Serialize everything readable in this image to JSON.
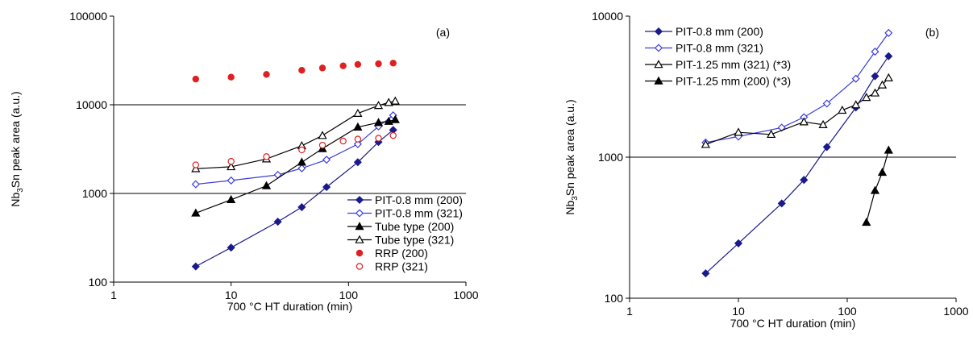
{
  "chart_data": [
    {
      "type": "scatter",
      "panel_label": "(a)",
      "xlabel": "700 °C HT duration (min)",
      "ylabel": "Nb3Sn peak area (a.u.)",
      "ylabel_base": "Nb",
      "ylabel_sub": "3",
      "ylabel_rest": "Sn peak area (a.u.)",
      "x_scale": "log",
      "y_scale": "log",
      "xlim": [
        1,
        1000
      ],
      "ylim": [
        100,
        100000
      ],
      "x_ticks": [
        1,
        10,
        100,
        1000
      ],
      "x_tick_labels": [
        "1",
        "10",
        "100",
        "1000"
      ],
      "y_ticks": [
        100,
        1000,
        10000,
        100000
      ],
      "y_tick_labels": [
        "100",
        "1000",
        "10000",
        "100000"
      ],
      "gridlines_y": [
        1000,
        10000
      ],
      "legend_position": "bottom-right",
      "series": [
        {
          "name": "PIT-0.8 mm (200)",
          "color": "#1a1a8c",
          "marker": "diamond-filled",
          "line": true,
          "x": [
            5,
            10,
            25,
            40,
            65,
            120,
            180,
            240
          ],
          "y": [
            150,
            245,
            480,
            700,
            1180,
            2250,
            3800,
            5200
          ]
        },
        {
          "name": "PIT-0.8 mm (321)",
          "color": "#3c3cdc",
          "marker": "diamond-open",
          "line": true,
          "x": [
            5,
            10,
            25,
            40,
            65,
            120,
            180,
            240
          ],
          "y": [
            1270,
            1400,
            1620,
            1920,
            2400,
            3600,
            5700,
            7600
          ]
        },
        {
          "name": "Tube type (200)",
          "color": "#000000",
          "marker": "triangle-filled",
          "line": true,
          "x": [
            5,
            10,
            20,
            40,
            60,
            120,
            180,
            220,
            250
          ],
          "y": [
            600,
            850,
            1220,
            2250,
            3200,
            5600,
            6300,
            6500,
            6800
          ]
        },
        {
          "name": "Tube type (321)",
          "color": "#000000",
          "marker": "triangle-open",
          "line": true,
          "x": [
            5,
            10,
            20,
            40,
            60,
            120,
            180,
            220,
            250
          ],
          "y": [
            1900,
            2000,
            2450,
            3450,
            4500,
            8000,
            9800,
            10600,
            11000
          ]
        },
        {
          "name": "RRP (200)",
          "color": "#e02020",
          "marker": "circle-filled",
          "line": false,
          "x": [
            5,
            10,
            20,
            40,
            60,
            90,
            120,
            180,
            240
          ],
          "y": [
            19500,
            20500,
            22000,
            24500,
            26000,
            27500,
            28500,
            29000,
            29500
          ]
        },
        {
          "name": "RRP (321)",
          "color": "#e02020",
          "marker": "circle-open",
          "line": false,
          "x": [
            5,
            10,
            20,
            40,
            60,
            90,
            120,
            180,
            240
          ],
          "y": [
            2100,
            2300,
            2600,
            3100,
            3500,
            3900,
            4100,
            4200,
            4500
          ]
        }
      ]
    },
    {
      "type": "scatter",
      "panel_label": "(b)",
      "xlabel": "700 °C HT duration (min)",
      "ylabel": "Nb3Sn peak area (a.u.)",
      "ylabel_base": "Nb",
      "ylabel_sub": "3",
      "ylabel_rest": "Sn peak area (a.u.)",
      "x_scale": "log",
      "y_scale": "log",
      "xlim": [
        1,
        1000
      ],
      "ylim": [
        100,
        10000
      ],
      "x_ticks": [
        1,
        10,
        100,
        1000
      ],
      "x_tick_labels": [
        "1",
        "10",
        "100",
        "1000"
      ],
      "y_ticks": [
        100,
        1000,
        10000
      ],
      "y_tick_labels": [
        "100",
        "1000",
        "10000"
      ],
      "gridlines_y": [
        1000
      ],
      "legend_position": "top-left",
      "series": [
        {
          "name": "PIT-0.8 mm  (200)",
          "color": "#1a1a8c",
          "marker": "diamond-filled",
          "line": true,
          "x": [
            5,
            10,
            25,
            40,
            65,
            120,
            180,
            240
          ],
          "y": [
            150,
            245,
            470,
            690,
            1180,
            2250,
            3750,
            5200
          ]
        },
        {
          "name": "PIT-0.8 mm  (321)",
          "color": "#3c3cdc",
          "marker": "diamond-open",
          "line": true,
          "x": [
            5,
            10,
            25,
            40,
            65,
            120,
            180,
            240
          ],
          "y": [
            1270,
            1400,
            1620,
            1920,
            2400,
            3600,
            5600,
            7600
          ]
        },
        {
          "name": "PIT-1.25 mm (321) (*3)",
          "color": "#000000",
          "marker": "triangle-open",
          "line": true,
          "x": [
            5,
            10,
            20,
            40,
            60,
            90,
            120,
            150,
            180,
            210,
            240
          ],
          "y": [
            1230,
            1500,
            1450,
            1780,
            1700,
            2150,
            2350,
            2650,
            2850,
            3250,
            3650
          ]
        },
        {
          "name": "PIT-1.25 mm (200) (*3)",
          "color": "#000000",
          "marker": "triangle-filled",
          "line": true,
          "x": [
            150,
            180,
            210,
            240
          ],
          "y": [
            345,
            580,
            780,
            1120
          ]
        }
      ]
    }
  ]
}
